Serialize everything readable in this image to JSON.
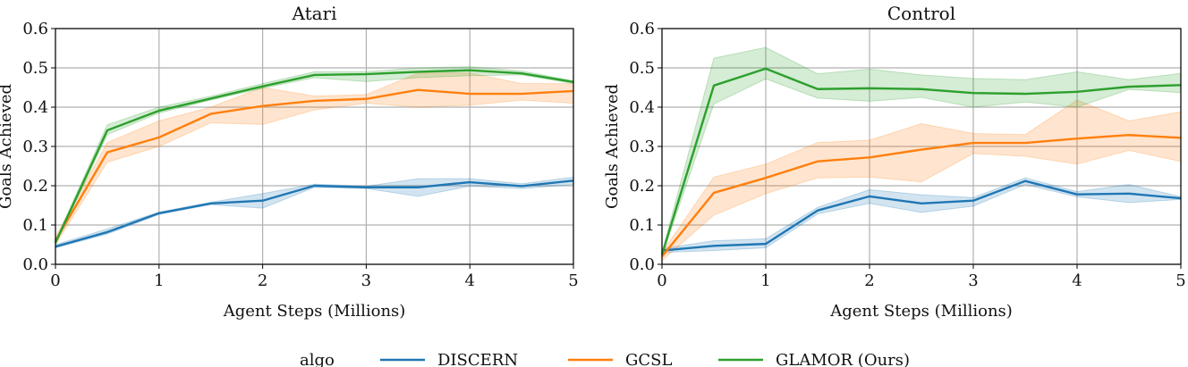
{
  "chart_data": [
    {
      "type": "line",
      "title": "Atari",
      "xlabel": "Agent Steps (Millions)",
      "ylabel": "Goals Achieved",
      "xlim": [
        0,
        5
      ],
      "ylim": [
        0,
        0.6
      ],
      "xticks": [
        "0",
        "1",
        "2",
        "3",
        "4",
        "5"
      ],
      "yticks": [
        "0.0",
        "0.1",
        "0.2",
        "0.3",
        "0.4",
        "0.5",
        "0.6"
      ],
      "grid": true,
      "x": [
        0,
        0.5,
        1,
        1.5,
        2,
        2.5,
        3,
        3.5,
        4,
        4.5,
        5
      ],
      "series": [
        {
          "name": "DISCERN",
          "color": "#1f77b4",
          "values": [
            0.045,
            0.082,
            0.13,
            0.155,
            0.162,
            0.2,
            0.196,
            0.196,
            0.209,
            0.199,
            0.213
          ],
          "lower": [
            0.042,
            0.077,
            0.127,
            0.152,
            0.143,
            0.196,
            0.193,
            0.173,
            0.199,
            0.193,
            0.203
          ],
          "upper": [
            0.05,
            0.09,
            0.133,
            0.158,
            0.18,
            0.204,
            0.199,
            0.218,
            0.218,
            0.205,
            0.222
          ]
        },
        {
          "name": "GCSL",
          "color": "#ff7f0e",
          "values": [
            0.06,
            0.285,
            0.323,
            0.383,
            0.403,
            0.416,
            0.421,
            0.444,
            0.434,
            0.434,
            0.441
          ],
          "lower": [
            0.05,
            0.26,
            0.3,
            0.36,
            0.356,
            0.393,
            0.41,
            0.4,
            0.405,
            0.418,
            0.41
          ],
          "upper": [
            0.07,
            0.31,
            0.365,
            0.4,
            0.45,
            0.428,
            0.432,
            0.487,
            0.487,
            0.46,
            0.46
          ]
        },
        {
          "name": "GLAMOR (Ours)",
          "color": "#2ca02c",
          "values": [
            0.055,
            0.341,
            0.391,
            0.422,
            0.453,
            0.482,
            0.484,
            0.49,
            0.494,
            0.486,
            0.464
          ],
          "lower": [
            0.05,
            0.33,
            0.385,
            0.418,
            0.448,
            0.475,
            0.465,
            0.475,
            0.48,
            0.482,
            0.46
          ],
          "upper": [
            0.06,
            0.355,
            0.4,
            0.428,
            0.46,
            0.49,
            0.49,
            0.5,
            0.503,
            0.492,
            0.467
          ]
        }
      ]
    },
    {
      "type": "line",
      "title": "Control",
      "xlabel": "Agent Steps (Millions)",
      "ylabel": "Goals Achieved",
      "xlim": [
        0,
        5
      ],
      "ylim": [
        0,
        0.6
      ],
      "xticks": [
        "0",
        "1",
        "2",
        "3",
        "4",
        "5"
      ],
      "yticks": [
        "0.0",
        "0.1",
        "0.2",
        "0.3",
        "0.4",
        "0.5",
        "0.6"
      ],
      "grid": true,
      "x": [
        0,
        0.5,
        1,
        1.5,
        2,
        2.5,
        3,
        3.5,
        4,
        4.5,
        5
      ],
      "series": [
        {
          "name": "DISCERN",
          "color": "#1f77b4",
          "values": [
            0.035,
            0.047,
            0.052,
            0.137,
            0.173,
            0.155,
            0.162,
            0.212,
            0.178,
            0.18,
            0.168
          ],
          "lower": [
            0.03,
            0.035,
            0.042,
            0.128,
            0.155,
            0.132,
            0.148,
            0.203,
            0.172,
            0.157,
            0.165
          ],
          "upper": [
            0.04,
            0.06,
            0.065,
            0.145,
            0.19,
            0.177,
            0.17,
            0.22,
            0.185,
            0.203,
            0.172
          ]
        },
        {
          "name": "GCSL",
          "color": "#ff7f0e",
          "values": [
            0.02,
            0.182,
            0.22,
            0.262,
            0.272,
            0.292,
            0.309,
            0.309,
            0.32,
            0.329,
            0.322
          ],
          "lower": [
            0.01,
            0.125,
            0.18,
            0.22,
            0.222,
            0.21,
            0.282,
            0.275,
            0.255,
            0.29,
            0.262
          ],
          "upper": [
            0.03,
            0.222,
            0.255,
            0.31,
            0.316,
            0.358,
            0.333,
            0.33,
            0.418,
            0.365,
            0.388
          ]
        },
        {
          "name": "GLAMOR (Ours)",
          "color": "#2ca02c",
          "values": [
            0.025,
            0.455,
            0.498,
            0.446,
            0.448,
            0.446,
            0.436,
            0.434,
            0.439,
            0.452,
            0.456
          ],
          "lower": [
            0.02,
            0.408,
            0.472,
            0.423,
            0.415,
            0.425,
            0.4,
            0.413,
            0.4,
            0.445,
            0.437
          ],
          "upper": [
            0.03,
            0.525,
            0.552,
            0.485,
            0.497,
            0.482,
            0.473,
            0.47,
            0.49,
            0.47,
            0.486
          ]
        }
      ]
    }
  ],
  "legend": {
    "title": "algo",
    "placement": "bottom-center",
    "entries": [
      "DISCERN",
      "GCSL",
      "GLAMOR (Ours)"
    ]
  }
}
